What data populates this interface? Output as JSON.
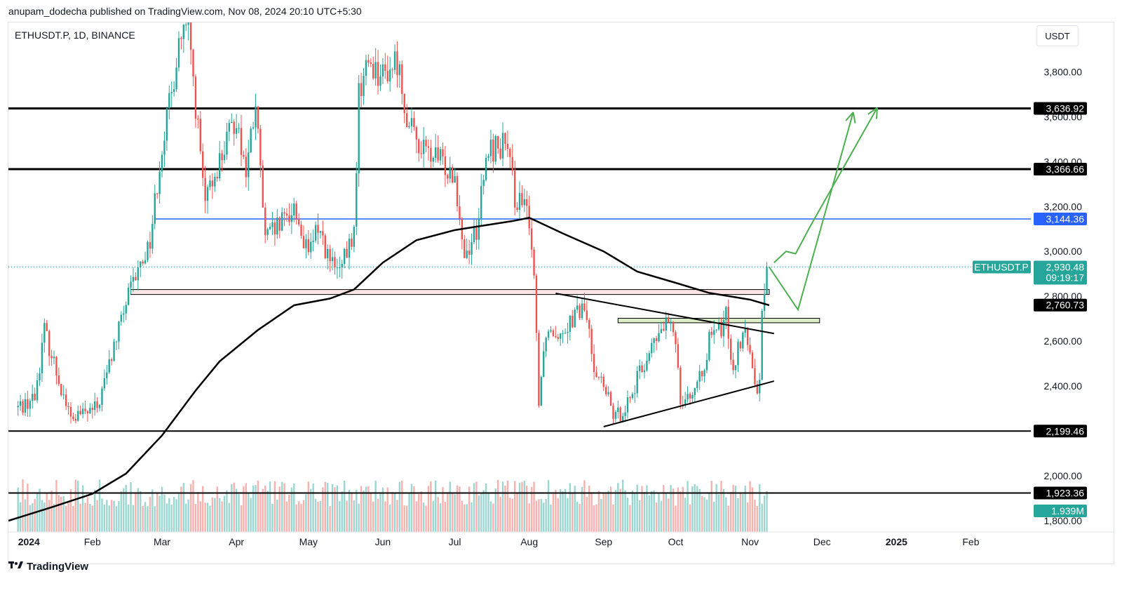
{
  "header": {
    "published_by": "anupam_dodecha published on TradingView.com, Nov 08, 2024 20:10 UTC+5:30"
  },
  "symbol": {
    "title": "ETHUSDT.P, 1D, BINANCE",
    "currency": "USDT"
  },
  "footer": {
    "logo": "TradingView"
  },
  "colors": {
    "up": "#26a69a",
    "down": "#ef5350",
    "blue_line": "#2962ff",
    "dark": "#000000",
    "arrow": "#4caf50"
  },
  "chart_data": {
    "type": "candlestick",
    "y_axis": {
      "range": [
        1750,
        4020
      ],
      "ticks": [
        "3,800.00",
        "3,600.00",
        "3,400.00",
        "3,200.00",
        "3,000.00",
        "2,800.00",
        "2,600.00",
        "2,400.00",
        "2,000.00",
        "1,800.00"
      ],
      "tick_values": [
        3800,
        3600,
        3400,
        3200,
        3000,
        2800,
        2600,
        2400,
        2000,
        1800
      ]
    },
    "x_axis": {
      "labels": [
        "2024",
        "Feb",
        "Mar",
        "Apr",
        "May",
        "Jun",
        "Jul",
        "Aug",
        "Sep",
        "Oct",
        "Nov",
        "Dec",
        "2025",
        "Feb"
      ],
      "label_dates": [
        "2024-01-01",
        "2024-02-01",
        "2024-03-01",
        "2024-04-01",
        "2024-05-01",
        "2024-06-01",
        "2024-07-01",
        "2024-08-01",
        "2024-09-01",
        "2024-10-01",
        "2024-11-01",
        "2024-12-01",
        "2025-01-01",
        "2025-02-01"
      ],
      "bold_labels": [
        "2024",
        "2025"
      ],
      "start": "2023-12-28",
      "end": "2025-02-26"
    },
    "last_price": {
      "symbol": "ETHUSDT.P",
      "value": "2,930.48",
      "countdown": "09:19:17",
      "price": 2930.48
    },
    "volume_label": "1.939M",
    "horizontal_levels": [
      {
        "price": 3636.92,
        "label": "3,636.92",
        "style": "thick"
      },
      {
        "price": 3366.66,
        "label": "3,366.66",
        "style": "thick"
      },
      {
        "price": 3144.36,
        "label": "3,144.36",
        "style": "blue",
        "start": "2024-02-27"
      },
      {
        "price": 2199.46,
        "label": "2,199.46",
        "style": "normal"
      },
      {
        "price": 1923.36,
        "label": "1,923.36",
        "style": "normal"
      }
    ],
    "moving_average_label": {
      "price": 2760.73,
      "label": "2,760.73"
    },
    "zones": [
      {
        "from": "2024-02-17",
        "to": "2024-11-09",
        "top": 2830,
        "bottom": 2808,
        "color": "pink"
      },
      {
        "from": "2024-09-07",
        "to": "2024-11-30",
        "top": 2702,
        "bottom": 2682,
        "color": "green"
      }
    ],
    "trendlines": [
      {
        "from": [
          "2024-08-12",
          2813
        ],
        "to": [
          "2024-11-11",
          2634
        ]
      },
      {
        "from": [
          "2024-09-01",
          2219
        ],
        "to": [
          "2024-11-11",
          2422
        ]
      }
    ],
    "moving_average": [
      [
        "2023-12-28",
        1800
      ],
      [
        "2024-01-15",
        1860
      ],
      [
        "2024-02-01",
        1920
      ],
      [
        "2024-02-15",
        2010
      ],
      [
        "2024-03-01",
        2180
      ],
      [
        "2024-03-15",
        2380
      ],
      [
        "2024-03-25",
        2510
      ],
      [
        "2024-04-10",
        2650
      ],
      [
        "2024-04-25",
        2760
      ],
      [
        "2024-05-10",
        2790
      ],
      [
        "2024-05-20",
        2830
      ],
      [
        "2024-06-01",
        2950
      ],
      [
        "2024-06-15",
        3050
      ],
      [
        "2024-07-01",
        3095
      ],
      [
        "2024-07-10",
        3110
      ],
      [
        "2024-07-25",
        3135
      ],
      [
        "2024-08-01",
        3150
      ],
      [
        "2024-08-15",
        3080
      ],
      [
        "2024-09-01",
        3000
      ],
      [
        "2024-09-15",
        2910
      ],
      [
        "2024-10-01",
        2860
      ],
      [
        "2024-10-15",
        2815
      ],
      [
        "2024-11-01",
        2785
      ],
      [
        "2024-11-09",
        2760
      ]
    ],
    "price_path": [
      [
        "2023-12-28",
        2280
      ],
      [
        "2024-01-08",
        2350
      ],
      [
        "2024-01-12",
        2650
      ],
      [
        "2024-01-15",
        2540
      ],
      [
        "2024-01-23",
        2250
      ],
      [
        "2024-02-03",
        2300
      ],
      [
        "2024-02-15",
        2770
      ],
      [
        "2024-02-25",
        3050
      ],
      [
        "2024-03-01",
        3480
      ],
      [
        "2024-03-05",
        3700
      ],
      [
        "2024-03-08",
        3940
      ],
      [
        "2024-03-12",
        3990
      ],
      [
        "2024-03-15",
        3650
      ],
      [
        "2024-03-19",
        3200
      ],
      [
        "2024-03-23",
        3350
      ],
      [
        "2024-04-01",
        3600
      ],
      [
        "2024-04-05",
        3350
      ],
      [
        "2024-04-09",
        3650
      ],
      [
        "2024-04-13",
        3050
      ],
      [
        "2024-04-20",
        3120
      ],
      [
        "2024-04-25",
        3200
      ],
      [
        "2024-05-01",
        2970
      ],
      [
        "2024-05-05",
        3120
      ],
      [
        "2024-05-10",
        2950
      ],
      [
        "2024-05-14",
        2900
      ],
      [
        "2024-05-20",
        3080
      ],
      [
        "2024-05-22",
        3700
      ],
      [
        "2024-05-26",
        3850
      ],
      [
        "2024-06-01",
        3780
      ],
      [
        "2024-06-07",
        3850
      ],
      [
        "2024-06-12",
        3550
      ],
      [
        "2024-06-18",
        3450
      ],
      [
        "2024-06-25",
        3400
      ],
      [
        "2024-07-01",
        3350
      ],
      [
        "2024-07-05",
        2980
      ],
      [
        "2024-07-10",
        3100
      ],
      [
        "2024-07-15",
        3450
      ],
      [
        "2024-07-22",
        3480
      ],
      [
        "2024-07-26",
        3250
      ],
      [
        "2024-08-01",
        3150
      ],
      [
        "2024-08-03",
        2900
      ],
      [
        "2024-08-05",
        2350
      ],
      [
        "2024-08-08",
        2650
      ],
      [
        "2024-08-14",
        2650
      ],
      [
        "2024-08-24",
        2750
      ],
      [
        "2024-08-28",
        2500
      ],
      [
        "2024-09-06",
        2250
      ],
      [
        "2024-09-12",
        2350
      ],
      [
        "2024-09-20",
        2550
      ],
      [
        "2024-09-27",
        2680
      ],
      [
        "2024-10-01",
        2620
      ],
      [
        "2024-10-03",
        2350
      ],
      [
        "2024-10-10",
        2380
      ],
      [
        "2024-10-15",
        2600
      ],
      [
        "2024-10-20",
        2650
      ],
      [
        "2024-10-22",
        2720
      ],
      [
        "2024-10-25",
        2480
      ],
      [
        "2024-10-29",
        2650
      ],
      [
        "2024-11-02",
        2500
      ],
      [
        "2024-11-04",
        2400
      ],
      [
        "2024-11-05",
        2420
      ],
      [
        "2024-11-06",
        2720
      ],
      [
        "2024-11-07",
        2820
      ],
      [
        "2024-11-08",
        2930
      ]
    ],
    "projection_arrows": [
      [
        [
          "2024-11-09",
          2930
        ],
        [
          "2024-11-21",
          2740
        ],
        [
          "2024-12-14",
          3620
        ]
      ],
      [
        [
          "2024-11-11",
          2950
        ],
        [
          "2024-11-16",
          3000
        ],
        [
          "2024-11-20",
          2990
        ],
        [
          "2024-11-26",
          3110
        ],
        [
          "2024-12-24",
          3640
        ]
      ]
    ]
  }
}
